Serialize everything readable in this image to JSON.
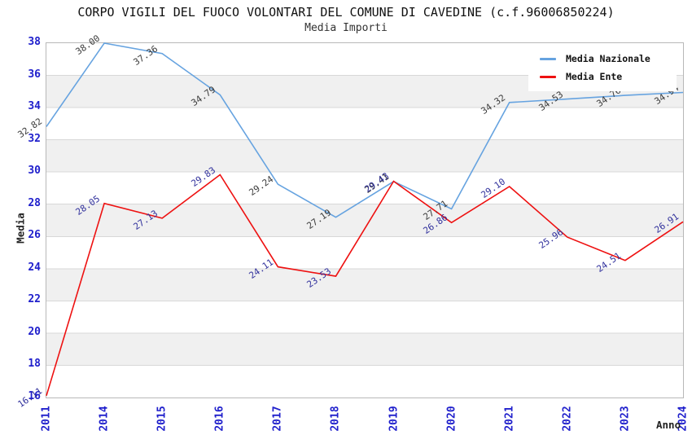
{
  "title": "CORPO VIGILI DEL FUOCO VOLONTARI DEL COMUNE DI CAVEDINE (c.f.96006850224)",
  "subtitle": "Media Importi",
  "axes": {
    "ylabel": "Media",
    "xlabel": "Anno",
    "y_tick_labels": [
      "16",
      "18",
      "20",
      "22",
      "24",
      "26",
      "28",
      "30",
      "32",
      "34",
      "36",
      "38"
    ],
    "x_tick_labels": [
      "2011",
      "2014",
      "2015",
      "2016",
      "2017",
      "2018",
      "2019",
      "2020",
      "2021",
      "2022",
      "2023",
      "2024"
    ]
  },
  "colors": {
    "nazionale_line": "#66A3E0",
    "ente_line": "#EE1111",
    "tick_label_blue": "#2020CC",
    "nazionale_data_label": "#3A3A3A",
    "ente_data_label": "#30309C",
    "band_gray": "#F0F0F0",
    "band_white": "#FFFFFF",
    "grid_line": "#D8D8D8",
    "plot_border": "#B8B8B8"
  },
  "legend": {
    "items": [
      {
        "label": "Media Nazionale",
        "color": "#66A3E0"
      },
      {
        "label": "Media Ente",
        "color": "#EE1111"
      }
    ]
  },
  "chart_data": {
    "type": "line",
    "title": "Media Importi",
    "xlabel": "Anno",
    "ylabel": "Media",
    "x": [
      "2011",
      "2014",
      "2015",
      "2016",
      "2017",
      "2018",
      "2019",
      "2020",
      "2021",
      "2022",
      "2023",
      "2024"
    ],
    "series": [
      {
        "name": "Media Nazionale",
        "color": "#66A3E0",
        "label_color": "#3A3A3A",
        "values": [
          32.82,
          38.0,
          37.36,
          34.79,
          29.24,
          27.19,
          29.41,
          27.71,
          34.32,
          34.53,
          34.76,
          34.94
        ]
      },
      {
        "name": "Media Ente",
        "color": "#EE1111",
        "label_color": "#30309C",
        "values": [
          16.11,
          28.05,
          27.13,
          29.83,
          24.11,
          23.53,
          29.43,
          26.86,
          29.1,
          25.96,
          24.51,
          26.91
        ]
      }
    ],
    "ylim": [
      16,
      38
    ],
    "ytick_step": 2,
    "grid": true,
    "bands": "alternating horizontal 2-unit stripes, white and light gray",
    "legend_position": "top-right",
    "point_labels": "each point labeled with value to 2 decimals, rotated ~35deg"
  }
}
